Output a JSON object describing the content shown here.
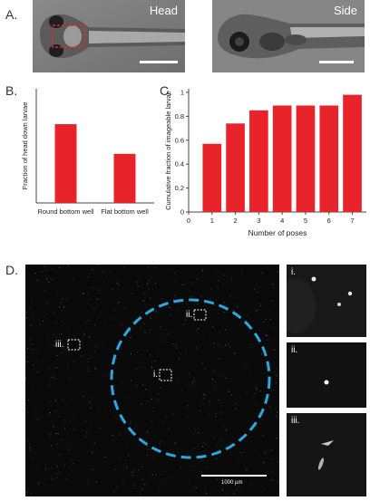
{
  "panels": {
    "a": {
      "letter": "A.",
      "head_label": "Head",
      "side_label": "Side"
    },
    "b": {
      "letter": "B."
    },
    "c": {
      "letter": "C."
    },
    "d": {
      "letter": "D.",
      "scalebar_label": "1000 µm",
      "roi_labels": [
        "i.",
        "ii.",
        "iii."
      ],
      "inset_labels": [
        "i.",
        "ii.",
        "iii."
      ]
    }
  },
  "colors": {
    "bar": "#e8242a",
    "circle": "#2aa8e0",
    "background_dark": "#0a0a0a"
  },
  "chart_data": [
    {
      "type": "bar",
      "categories": [
        "Round bottom well",
        "Flat bottom well"
      ],
      "values": [
        0.69,
        0.43
      ],
      "title": "",
      "xlabel": "",
      "ylabel": "Fraction of head down larvae",
      "ylim": [
        0,
        1
      ]
    },
    {
      "type": "bar",
      "categories": [
        "1",
        "2",
        "3",
        "4",
        "5",
        "6",
        "7"
      ],
      "values": [
        0.57,
        0.74,
        0.85,
        0.89,
        0.89,
        0.89,
        0.98
      ],
      "title": "",
      "xlabel": "Number of poses",
      "ylabel": "Cumulative fraction of imageable larvae",
      "xticks": [
        "0",
        "1",
        "2",
        "3",
        "4",
        "5",
        "6",
        "7"
      ],
      "yticks": [
        "0",
        "0.2",
        "0.4",
        "0.6",
        "0.8",
        "1"
      ],
      "xlim": [
        0,
        7.6
      ],
      "ylim": [
        0,
        1.03
      ]
    }
  ]
}
